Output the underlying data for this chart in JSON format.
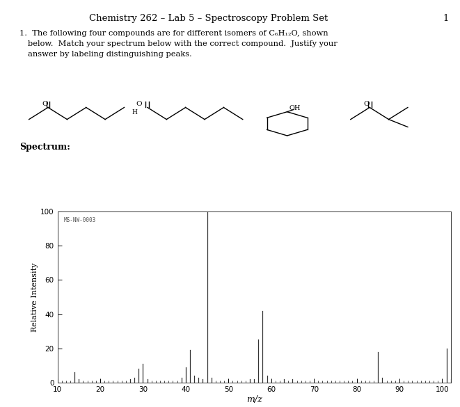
{
  "title": "Chemistry 262 – Lab 5 – Spectroscopy Problem Set",
  "page_number": "1",
  "spectrum_label": "Spectrum:",
  "ms_label": "MS-NW-0003",
  "xlabel": "m/z",
  "ylabel": "Relative Intensity",
  "xlim": [
    10,
    102
  ],
  "ylim": [
    0,
    100
  ],
  "xticks": [
    10,
    20,
    30,
    40,
    50,
    60,
    70,
    80,
    90,
    100
  ],
  "yticks": [
    0,
    20,
    40,
    60,
    80,
    100
  ],
  "background_color": "#ffffff",
  "peaks": [
    {
      "mz": 14,
      "intensity": 6
    },
    {
      "mz": 15,
      "intensity": 2
    },
    {
      "mz": 27,
      "intensity": 2
    },
    {
      "mz": 28,
      "intensity": 3
    },
    {
      "mz": 29,
      "intensity": 8
    },
    {
      "mz": 30,
      "intensity": 11
    },
    {
      "mz": 31,
      "intensity": 2
    },
    {
      "mz": 39,
      "intensity": 3
    },
    {
      "mz": 40,
      "intensity": 9
    },
    {
      "mz": 41,
      "intensity": 19
    },
    {
      "mz": 42,
      "intensity": 4
    },
    {
      "mz": 43,
      "intensity": 3
    },
    {
      "mz": 44,
      "intensity": 2
    },
    {
      "mz": 45,
      "intensity": 100
    },
    {
      "mz": 46,
      "intensity": 3
    },
    {
      "mz": 55,
      "intensity": 2
    },
    {
      "mz": 56,
      "intensity": 2
    },
    {
      "mz": 57,
      "intensity": 25
    },
    {
      "mz": 58,
      "intensity": 42
    },
    {
      "mz": 59,
      "intensity": 4
    },
    {
      "mz": 63,
      "intensity": 2
    },
    {
      "mz": 65,
      "intensity": 2
    },
    {
      "mz": 85,
      "intensity": 18
    },
    {
      "mz": 86,
      "intensity": 3
    },
    {
      "mz": 101,
      "intensity": 20
    },
    {
      "mz": 102,
      "intensity": 2
    }
  ]
}
